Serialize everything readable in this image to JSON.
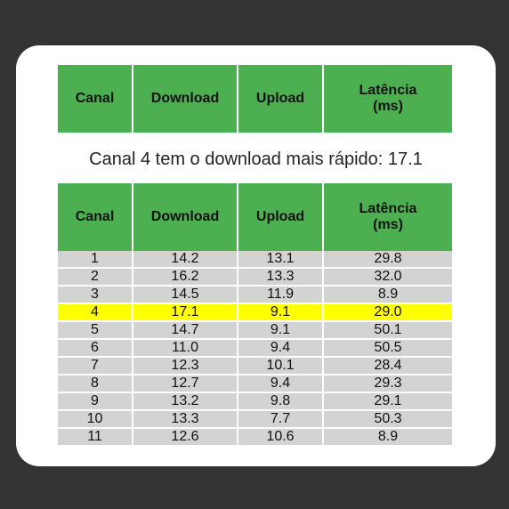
{
  "headers": {
    "canal": "Canal",
    "download": "Download",
    "upload": "Upload",
    "latencia_line1": "Latência",
    "latencia_line2": "(ms)"
  },
  "summary": "Canal 4 tem o download mais rápido: 17.1",
  "highlight_color": "#ffff00",
  "header_color": "#4caf50",
  "row_color": "#d3d3d3",
  "rows": [
    {
      "canal": "1",
      "download": "14.2",
      "upload": "13.1",
      "latencia": "29.8"
    },
    {
      "canal": "2",
      "download": "16.2",
      "upload": "13.3",
      "latencia": "32.0"
    },
    {
      "canal": "3",
      "download": "14.5",
      "upload": "11.9",
      "latencia": "8.9"
    },
    {
      "canal": "4",
      "download": "17.1",
      "upload": "9.1",
      "latencia": "29.0"
    },
    {
      "canal": "5",
      "download": "14.7",
      "upload": "9.1",
      "latencia": "50.1"
    },
    {
      "canal": "6",
      "download": "11.0",
      "upload": "9.4",
      "latencia": "50.5"
    },
    {
      "canal": "7",
      "download": "12.3",
      "upload": "10.1",
      "latencia": "28.4"
    },
    {
      "canal": "8",
      "download": "12.7",
      "upload": "9.4",
      "latencia": "29.3"
    },
    {
      "canal": "9",
      "download": "13.2",
      "upload": "9.8",
      "latencia": "29.1"
    },
    {
      "canal": "10",
      "download": "13.3",
      "upload": "7.7",
      "latencia": "50.3"
    },
    {
      "canal": "11",
      "download": "12.6",
      "upload": "10.6",
      "latencia": "8.9"
    }
  ],
  "highlighted_row_index": 3
}
